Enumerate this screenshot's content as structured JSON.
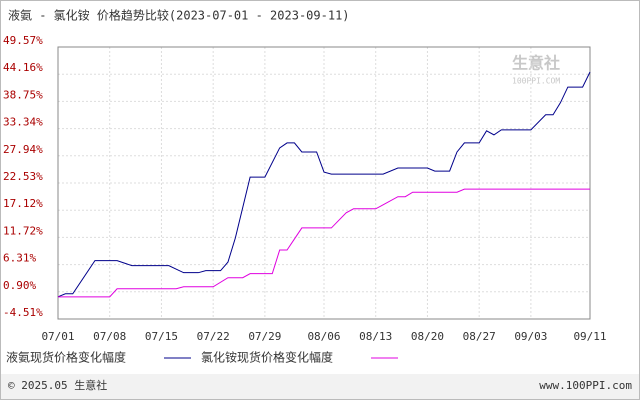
{
  "chart_data": {
    "type": "line",
    "title": "液氨 - 氯化铵 价格趋势比较(2023-07-01 - 2023-09-11)",
    "xticks": [
      "07/01",
      "07/08",
      "07/15",
      "07/22",
      "07/29",
      "08/06",
      "08/13",
      "08/20",
      "08/27",
      "09/03",
      "09/11"
    ],
    "ylim": [
      -4.51,
      49.57
    ],
    "yticks": [
      {
        "value": -4.51,
        "label": "-4.51%"
      },
      {
        "value": 0.9,
        "label": "0.90%"
      },
      {
        "value": 6.31,
        "label": "6.31%"
      },
      {
        "value": 11.72,
        "label": "11.72%"
      },
      {
        "value": 17.12,
        "label": "17.12%"
      },
      {
        "value": 22.53,
        "label": "22.53%"
      },
      {
        "value": 27.94,
        "label": "27.94%"
      },
      {
        "value": 33.34,
        "label": "33.34%"
      },
      {
        "value": 38.75,
        "label": "38.75%"
      },
      {
        "value": 44.16,
        "label": "44.16%"
      },
      {
        "value": 49.57,
        "label": "49.57%"
      }
    ],
    "grid": true,
    "series": [
      {
        "name": "液氨现货价格变化幅度",
        "color": "#00008b",
        "x": [
          "07/01",
          "07/02",
          "07/03",
          "07/06",
          "07/09",
          "07/11",
          "07/16",
          "07/18",
          "07/20",
          "07/21",
          "07/23",
          "07/24",
          "07/25",
          "07/27",
          "07/29",
          "07/31",
          "08/01",
          "08/02",
          "08/03",
          "08/05",
          "08/06",
          "08/07",
          "08/14",
          "08/16",
          "08/20",
          "08/21",
          "08/23",
          "08/24",
          "08/25",
          "08/27",
          "08/28",
          "08/29",
          "08/30",
          "09/03",
          "09/05",
          "09/06",
          "09/07",
          "09/08",
          "09/10",
          "09/11"
        ],
        "values": [
          -0.1,
          0.5,
          0.5,
          7.1,
          7.1,
          6.1,
          6.1,
          4.7,
          4.7,
          5.1,
          5.1,
          6.8,
          11.6,
          23.7,
          23.7,
          29.5,
          30.5,
          30.5,
          28.7,
          28.7,
          24.7,
          24.3,
          24.3,
          25.5,
          25.5,
          24.9,
          24.9,
          28.7,
          30.5,
          30.5,
          32.9,
          32.1,
          33.1,
          33.1,
          36.1,
          36.1,
          38.5,
          41.6,
          41.6,
          44.6
        ]
      },
      {
        "name": "氯化铵现货价格变化幅度",
        "color": "#e000e0",
        "x": [
          "07/01",
          "07/08",
          "07/09",
          "07/17",
          "07/18",
          "07/22",
          "07/24",
          "07/26",
          "07/27",
          "07/30",
          "07/31",
          "08/01",
          "08/03",
          "08/07",
          "08/09",
          "08/10",
          "08/13",
          "08/14",
          "08/16",
          "08/17",
          "08/18",
          "08/24",
          "08/25",
          "09/11"
        ],
        "values": [
          -0.1,
          -0.1,
          1.5,
          1.5,
          1.9,
          1.9,
          3.7,
          3.7,
          4.5,
          4.5,
          9.2,
          9.2,
          13.6,
          13.6,
          16.6,
          17.4,
          17.4,
          18.2,
          19.8,
          19.8,
          20.7,
          20.7,
          21.3,
          21.3
        ]
      }
    ],
    "watermark": "生意社",
    "watermark_url": "100PPI.COM",
    "footer_left": "© 2025.05 生意社",
    "footer_right": "www.100PPI.com"
  }
}
